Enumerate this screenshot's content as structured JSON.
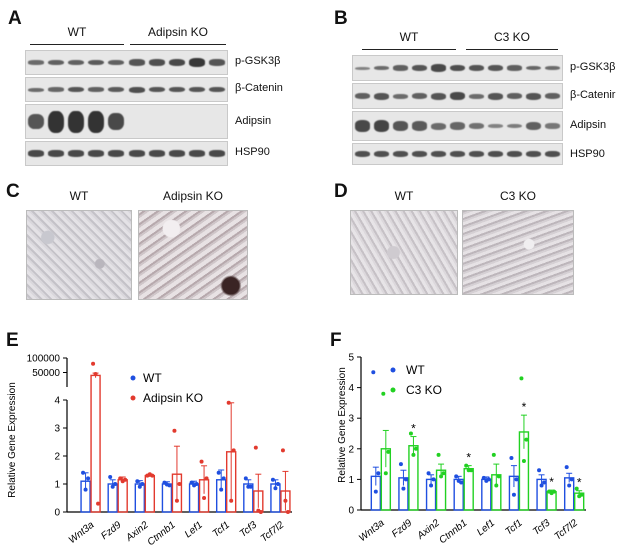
{
  "panels": {
    "A": {
      "letter": "A",
      "groups": [
        "WT",
        "Adipsin KO"
      ],
      "rows": [
        "p-GSK3β",
        "β-Catenin",
        "Adipsin",
        "HSP90"
      ]
    },
    "B": {
      "letter": "B",
      "groups": [
        "WT",
        "C3 KO"
      ],
      "rows": [
        "p-GSK3β",
        "β-Catenir",
        "Adipsin",
        "HSP90"
      ]
    },
    "C": {
      "letter": "C",
      "groups": [
        "WT",
        "Adipsin KO"
      ]
    },
    "D": {
      "letter": "D",
      "groups": [
        "WT",
        "C3 KO"
      ]
    },
    "E": {
      "letter": "E"
    },
    "F": {
      "letter": "F"
    }
  },
  "chart_data": [
    {
      "panel": "E",
      "type": "bar",
      "ylabel": "Relative Gene Expression",
      "yticks_lower": [
        "0",
        "1",
        "2",
        "3",
        "4"
      ],
      "yticks_upper": [
        "50000",
        "100000"
      ],
      "ylim_lower": [
        0,
        4
      ],
      "ylim_upper": [
        4,
        100000
      ],
      "categories": [
        "Wnt3a",
        "Fzd9",
        "Axin2",
        "Ctnnb1",
        "Lef1",
        "Tcf1",
        "Tcf3",
        "Tcf7l2"
      ],
      "series": [
        {
          "name": "WT",
          "color": "#1f4fe0",
          "values": [
            1.1,
            1.0,
            1.0,
            1.0,
            1.0,
            1.15,
            1.0,
            1.0
          ],
          "errors": [
            0.3,
            0.15,
            0.12,
            0.08,
            0.1,
            0.35,
            0.15,
            0.15
          ],
          "points": [
            [
              1.4,
              0.8,
              1.2
            ],
            [
              1.25,
              0.9,
              1.0
            ],
            [
              1.1,
              0.9,
              1.0
            ],
            [
              1.05,
              0.98,
              0.95
            ],
            [
              1.05,
              0.95,
              1.0
            ],
            [
              1.4,
              0.8,
              1.2
            ],
            [
              1.2,
              0.9,
              0.9
            ],
            [
              1.15,
              0.85,
              1.0
            ]
          ]
        },
        {
          "name": "Adipsin KO",
          "color": "#e23a2e",
          "values": [
            40000,
            1.15,
            1.3,
            1.35,
            1.15,
            2.15,
            0.75,
            0.75
          ],
          "errors": [
            8000,
            0.1,
            0.05,
            1.0,
            0.5,
            1.75,
            0.6,
            0.7
          ],
          "points": [
            [
              80000,
              45000,
              0.3
            ],
            [
              1.2,
              1.1,
              1.15
            ],
            [
              1.3,
              1.35,
              1.3
            ],
            [
              2.9,
              0.4,
              1.0
            ],
            [
              1.8,
              0.5,
              1.2
            ],
            [
              3.9,
              0.4,
              2.2
            ],
            [
              2.3,
              0.05,
              0.0
            ],
            [
              2.2,
              0.4,
              0.0
            ]
          ]
        }
      ]
    },
    {
      "panel": "F",
      "type": "bar",
      "ylabel": "Relative Gene Expression",
      "yticks": [
        "0",
        "1",
        "2",
        "3",
        "4",
        "5"
      ],
      "ylim": [
        0,
        5
      ],
      "categories": [
        "Wnt3a",
        "Fzd9",
        "Axin2",
        "Ctnnb1",
        "Lef1",
        "Tcf1",
        "Tcf3",
        "Tcf7l2"
      ],
      "significance": [
        "",
        "*",
        "",
        "*",
        "",
        "*",
        "*",
        "*"
      ],
      "series": [
        {
          "name": "WT",
          "color": "#1f4fe0",
          "values": [
            1.1,
            1.05,
            1.0,
            1.0,
            1.0,
            1.1,
            1.0,
            1.05
          ],
          "errors": [
            0.3,
            0.25,
            0.15,
            0.1,
            0.08,
            0.35,
            0.15,
            0.15
          ],
          "points": [
            [
              4.5,
              0.6,
              1.2
            ],
            [
              1.5,
              0.7,
              1.0
            ],
            [
              1.2,
              0.8,
              1.0
            ],
            [
              1.1,
              0.95,
              0.9
            ],
            [
              1.05,
              0.95,
              1.0
            ],
            [
              1.7,
              0.5,
              1.0
            ],
            [
              1.3,
              0.8,
              0.9
            ],
            [
              1.4,
              0.8,
              1.0
            ]
          ]
        },
        {
          "name": "C3 KO",
          "color": "#22d122",
          "values": [
            2.0,
            2.1,
            1.3,
            1.35,
            1.15,
            2.55,
            0.6,
            0.55
          ],
          "errors": [
            0.6,
            0.3,
            0.2,
            0.1,
            0.35,
            0.55,
            0.05,
            0.08
          ],
          "points": [
            [
              3.8,
              1.2,
              1.9
            ],
            [
              2.5,
              1.8,
              2.0
            ],
            [
              1.8,
              1.1,
              1.2
            ],
            [
              1.45,
              1.3,
              1.3
            ],
            [
              1.8,
              0.8,
              1.1
            ],
            [
              4.3,
              1.6,
              2.3
            ],
            [
              0.6,
              0.55,
              0.6
            ],
            [
              0.7,
              0.45,
              0.5
            ]
          ]
        }
      ]
    }
  ]
}
